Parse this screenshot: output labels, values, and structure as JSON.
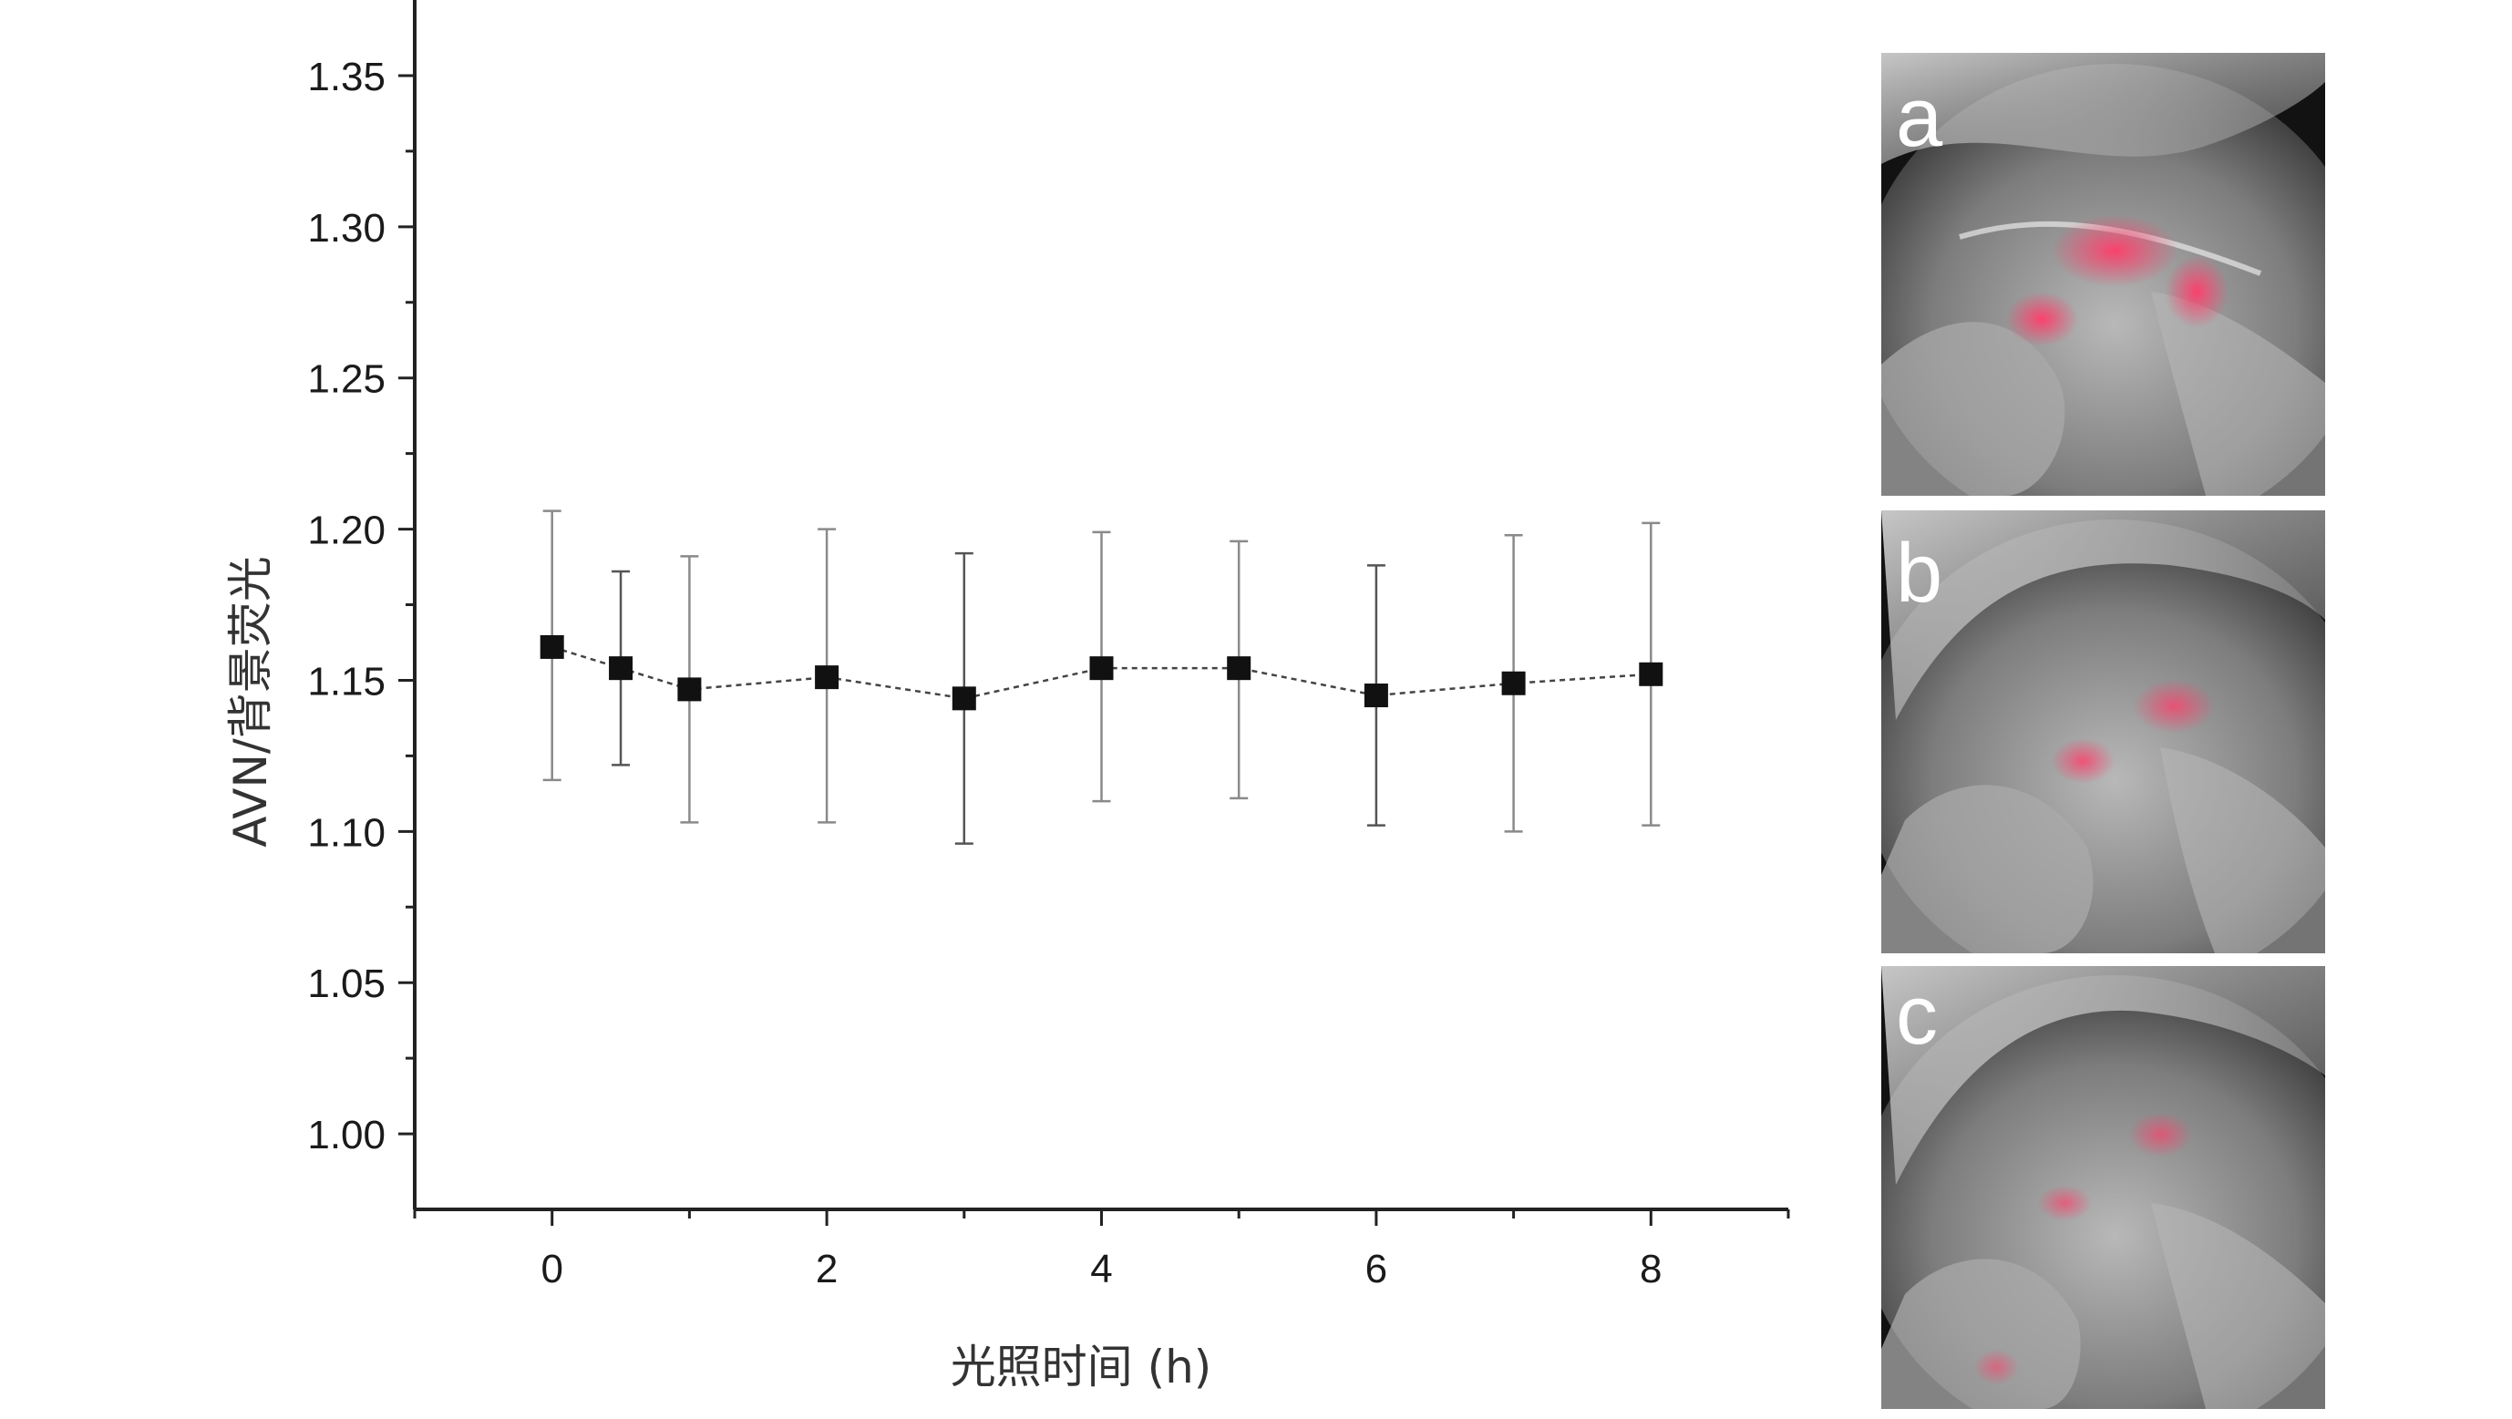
{
  "chart_data": {
    "type": "scatter",
    "xlabel": "光照时间 (h)",
    "ylabel": "AVN/背景荧光",
    "xlim": [
      -1,
      9
    ],
    "ylim": [
      0.975,
      1.375
    ],
    "x_ticks": [
      0,
      2,
      4,
      6,
      8
    ],
    "x_tick_labels": [
      "0",
      "2",
      "4",
      "6",
      "8"
    ],
    "y_ticks": [
      1.0,
      1.05,
      1.1,
      1.15,
      1.2,
      1.25,
      1.3,
      1.35
    ],
    "y_tick_labels": [
      "1.00",
      "1.05",
      "1.10",
      "1.15",
      "1.20",
      "1.25",
      "1.30",
      "1.35"
    ],
    "grid": false,
    "connector": "dashed line",
    "series": [
      {
        "x": [
          0,
          0.5,
          1,
          2,
          3,
          4,
          5,
          6,
          7,
          8
        ],
        "y": [
          1.161,
          1.154,
          1.147,
          1.151,
          1.144,
          1.154,
          1.154,
          1.145,
          1.149,
          1.152
        ],
        "err_high": [
          1.206,
          1.186,
          1.191,
          1.2,
          1.192,
          1.199,
          1.196,
          1.188,
          1.198,
          1.202
        ],
        "err_low": [
          1.117,
          1.122,
          1.103,
          1.103,
          1.096,
          1.11,
          1.111,
          1.102,
          1.1,
          1.102
        ]
      }
    ],
    "colors": {
      "marker": "#111111",
      "axis": "#222222",
      "errorbar": "#8a8a8a",
      "highlight": "#e8335a"
    }
  },
  "panels": [
    {
      "label": "a"
    },
    {
      "label": "b"
    },
    {
      "label": "c"
    }
  ]
}
